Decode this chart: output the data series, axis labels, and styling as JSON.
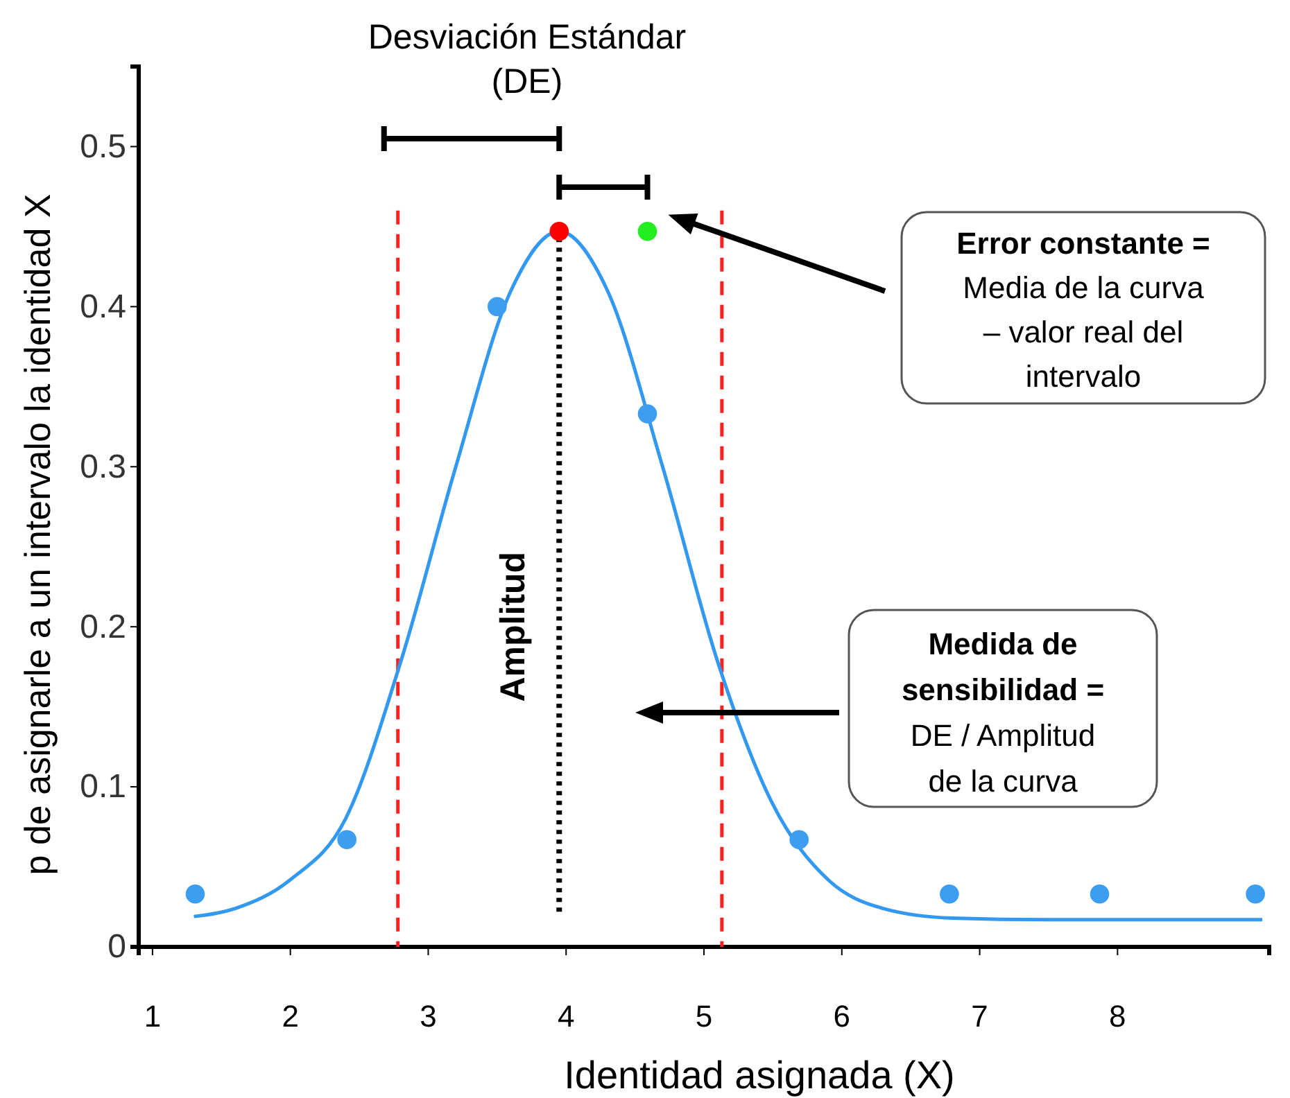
{
  "chart_data": {
    "type": "scatter",
    "xlabel": "Identidad asignada (X)",
    "ylabel": "p de asignarle a un intervalo la identidad X",
    "xlim": [
      0.9,
      9.1
    ],
    "xticks": [
      1,
      2,
      3,
      4,
      5,
      6,
      7,
      8
    ],
    "ylim": [
      0,
      0.55
    ],
    "yticks": [
      0,
      0.1,
      0.2,
      0.3,
      0.4,
      0.5
    ],
    "series": [
      {
        "type": "line",
        "color": "#3399f0",
        "x": [
          1.3,
          1.6,
          2.0,
          2.4,
          2.8,
          3.2,
          3.6,
          3.95,
          4.3,
          4.7,
          5.1,
          5.5,
          5.9,
          6.3,
          6.8,
          7.5,
          8.5,
          9.05
        ],
        "values": [
          0.019,
          0.024,
          0.042,
          0.08,
          0.178,
          0.3,
          0.41,
          0.447,
          0.41,
          0.3,
          0.178,
          0.089,
          0.042,
          0.024,
          0.018,
          0.017,
          0.017,
          0.017
        ]
      },
      {
        "type": "line",
        "color": "#000000",
        "line_style": "dotted",
        "x": [
          3.95,
          3.95
        ],
        "values": [
          0.022,
          0.447
        ]
      },
      {
        "color": "#3d9df0",
        "x": [
          1.31,
          2.41,
          3.5,
          4.59,
          5.69,
          6.78,
          7.87,
          9.0
        ],
        "values": [
          0.033,
          0.067,
          0.4,
          0.333,
          0.067,
          0.033,
          0.033,
          0.033
        ]
      },
      {
        "color": "#ff0000",
        "x": [
          3.95
        ],
        "values": [
          0.447
        ]
      },
      {
        "color": "#22ee22",
        "x": [
          4.59
        ],
        "values": [
          0.447
        ]
      }
    ],
    "ref_lines": [
      {
        "axis": "x",
        "value": 2.78,
        "color": "#ff2020",
        "line_style": "dashed"
      },
      {
        "axis": "x",
        "value": 5.13,
        "color": "#ff2020",
        "line_style": "dashed"
      }
    ],
    "annotations": [
      "Desviación Estándar\n(DE)",
      "Amplitud",
      "Error constante =\nMedia de la curva\n– valor real del\nintervalo",
      "Medida de\nsensibilidad =\nDE / Amplitud\nde la curva"
    ]
  }
}
